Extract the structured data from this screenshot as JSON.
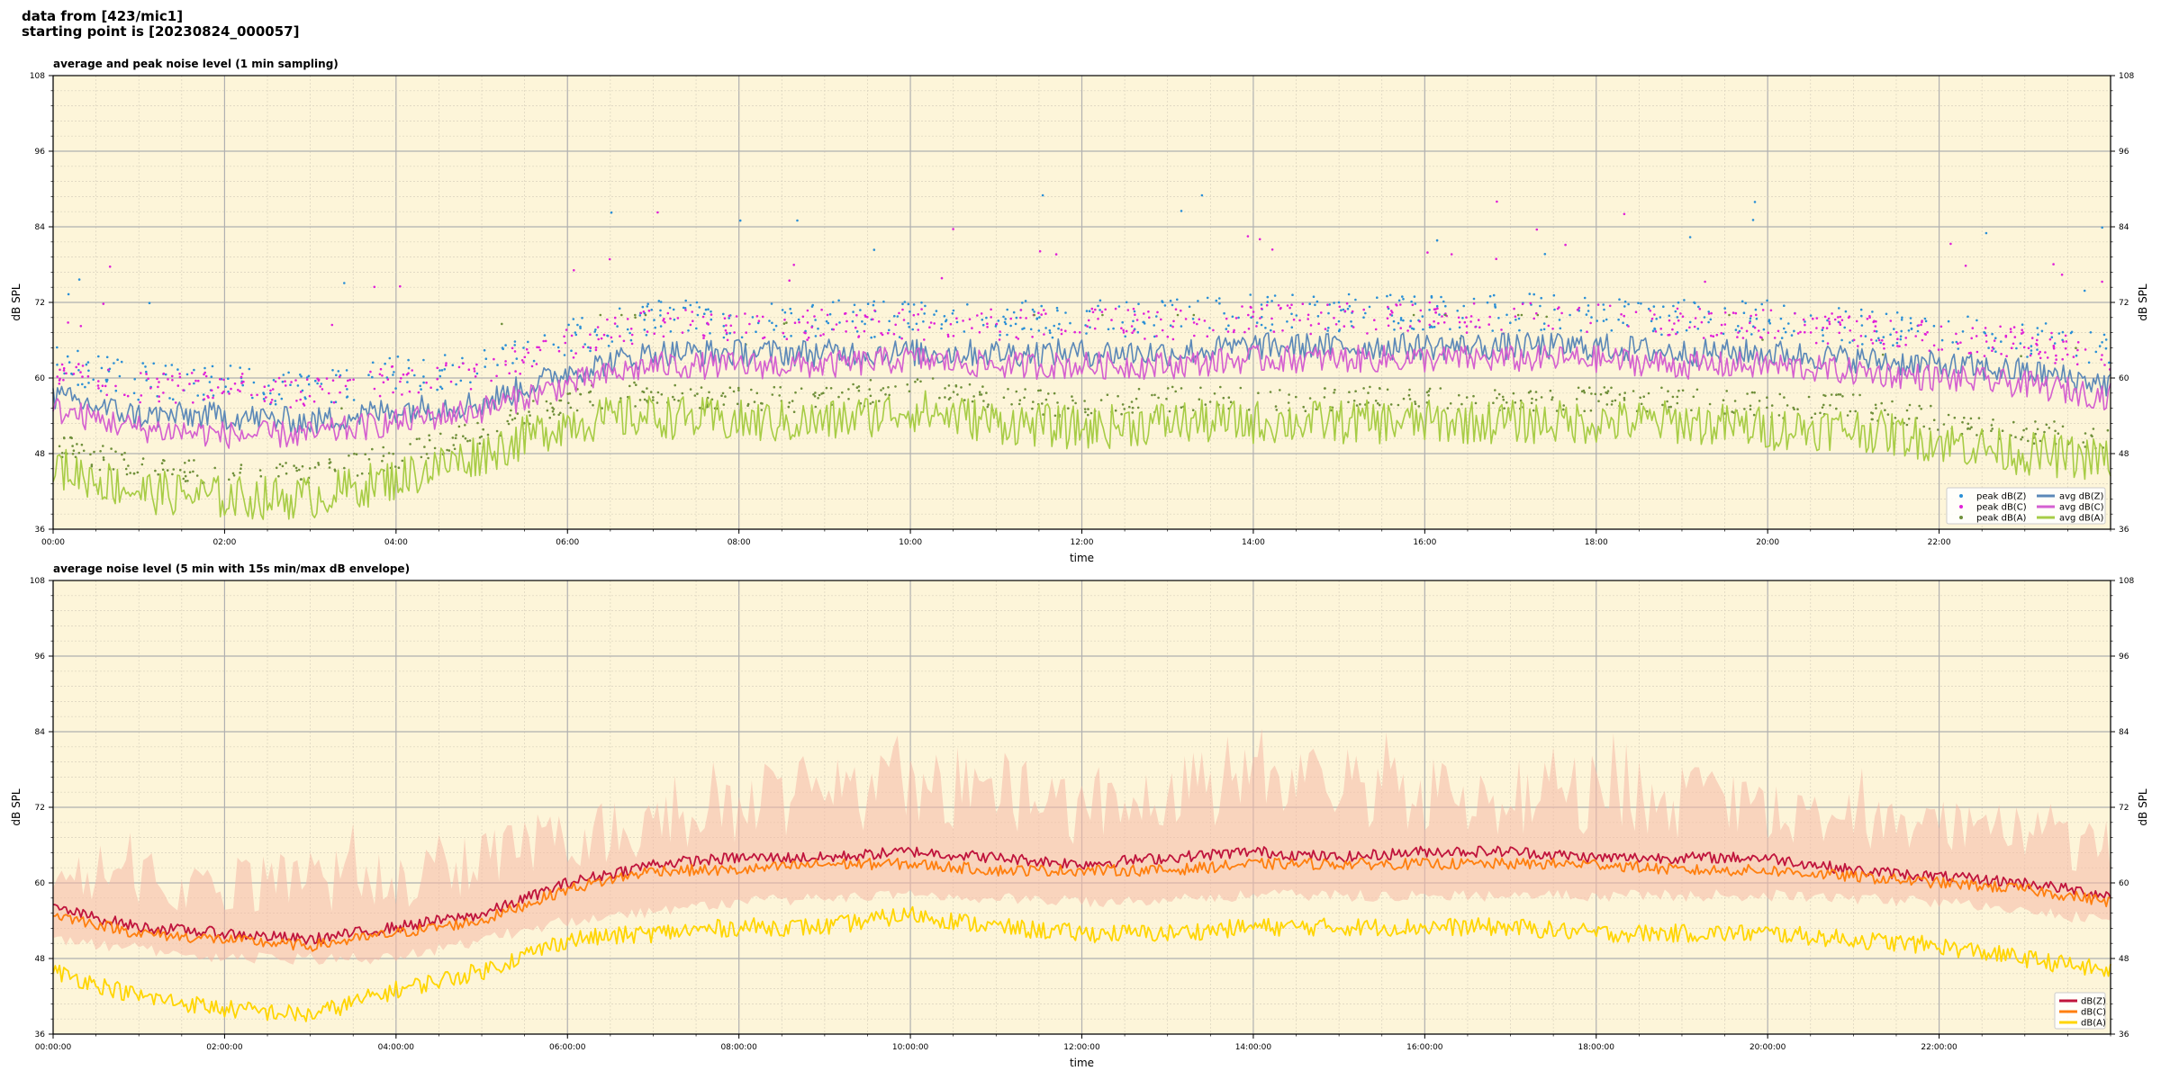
{
  "header": {
    "line1": "data from [423/mic1]",
    "line2": "starting point is [20230824_000057]"
  },
  "colors": {
    "plot_bg": "#fdf5d9",
    "peak_z": "#2a8fd6",
    "peak_c": "#e020d8",
    "peak_a": "#6f8f3a",
    "avg_z": "#5b88b8",
    "avg_c": "#d45fd0",
    "avg_a": "#a7cc45",
    "dbz": "#c0143c",
    "dbc": "#ff7f0e",
    "dba": "#ffd500",
    "envelope": "#f5b8a6"
  },
  "chart_data": [
    {
      "type": "line",
      "title": "average and peak noise level (1 min sampling)",
      "xlabel": "time",
      "ylabel": "dB SPL",
      "ylabel_right": "dB SPL",
      "ylim": [
        36,
        108
      ],
      "xlim_hours": [
        0,
        24
      ],
      "xticks": [
        "00:00",
        "02:00",
        "04:00",
        "06:00",
        "08:00",
        "10:00",
        "12:00",
        "14:00",
        "16:00",
        "18:00",
        "20:00",
        "22:00"
      ],
      "yticks": [
        36,
        48,
        60,
        72,
        84,
        96,
        108
      ],
      "grid": true,
      "legend_position": "lower-right",
      "legend": [
        "peak dB(Z)",
        "peak dB(C)",
        "peak dB(A)",
        "avg dB(Z)",
        "avg dB(C)",
        "avg dB(A)"
      ],
      "series": [
        {
          "name": "avg dB(Z)",
          "kind": "line",
          "x_hours": [
            0,
            1,
            2,
            3,
            4,
            5,
            6,
            7,
            8,
            9,
            10,
            11,
            12,
            13,
            14,
            15,
            16,
            17,
            18,
            19,
            20,
            21,
            22,
            23,
            24
          ],
          "values": [
            57,
            54,
            54,
            53,
            55,
            56,
            61,
            64,
            64,
            64,
            64,
            64,
            64,
            64,
            65,
            65,
            65,
            65,
            65,
            64,
            64,
            63,
            62,
            61,
            59
          ]
        },
        {
          "name": "avg dB(C)",
          "kind": "line",
          "x_hours": [
            0,
            1,
            2,
            3,
            4,
            5,
            6,
            7,
            8,
            9,
            10,
            11,
            12,
            13,
            14,
            15,
            16,
            17,
            18,
            19,
            20,
            21,
            22,
            23,
            24
          ],
          "values": [
            55,
            52,
            51,
            51,
            53,
            55,
            59,
            62,
            62,
            62,
            63,
            62,
            62,
            62,
            63,
            63,
            63,
            63,
            63,
            62,
            62,
            61,
            60,
            59,
            57
          ]
        },
        {
          "name": "avg dB(A)",
          "kind": "line",
          "x_hours": [
            0,
            1,
            2,
            3,
            4,
            5,
            6,
            7,
            8,
            9,
            10,
            11,
            12,
            13,
            14,
            15,
            16,
            17,
            18,
            19,
            20,
            21,
            22,
            23,
            24
          ],
          "values": [
            46,
            42,
            41,
            41,
            44,
            48,
            53,
            54,
            53,
            53,
            55,
            53,
            52,
            53,
            53,
            53,
            53,
            53,
            53,
            53,
            52,
            52,
            50,
            48,
            47
          ]
        },
        {
          "name": "peak dB(Z)",
          "kind": "points",
          "typical_offset_db": 6,
          "max_db": 89
        },
        {
          "name": "peak dB(C)",
          "kind": "points",
          "typical_offset_db": 5,
          "max_db": 88
        },
        {
          "name": "peak dB(A)",
          "kind": "points",
          "typical_offset_db": 4,
          "max_db": 70
        }
      ]
    },
    {
      "type": "line",
      "title": "average noise level (5 min with 15s min/max dB envelope)",
      "xlabel": "time",
      "ylabel": "dB SPL",
      "ylabel_right": "dB SPL",
      "ylim": [
        36,
        108
      ],
      "xlim_hours": [
        0,
        24
      ],
      "xticks": [
        "00:00:00",
        "02:00:00",
        "04:00:00",
        "06:00:00",
        "08:00:00",
        "10:00:00",
        "12:00:00",
        "14:00:00",
        "16:00:00",
        "18:00:00",
        "20:00:00",
        "22:00:00"
      ],
      "yticks": [
        36,
        48,
        60,
        72,
        84,
        96,
        108
      ],
      "grid": true,
      "legend_position": "lower-right",
      "legend": [
        "dB(Z)",
        "dB(C)",
        "dB(A)"
      ],
      "series": [
        {
          "name": "dB(Z)",
          "kind": "line",
          "x_hours": [
            0,
            1,
            2,
            3,
            4,
            5,
            6,
            7,
            8,
            9,
            10,
            11,
            12,
            13,
            14,
            15,
            16,
            17,
            18,
            19,
            20,
            21,
            22,
            23,
            24
          ],
          "values": [
            56,
            53,
            52,
            51,
            53,
            55,
            60,
            63,
            64,
            64,
            65,
            64,
            63,
            64,
            65,
            64,
            65,
            65,
            64,
            64,
            64,
            62,
            61,
            60,
            58
          ]
        },
        {
          "name": "dB(C)",
          "kind": "line",
          "x_hours": [
            0,
            1,
            2,
            3,
            4,
            5,
            6,
            7,
            8,
            9,
            10,
            11,
            12,
            13,
            14,
            15,
            16,
            17,
            18,
            19,
            20,
            21,
            22,
            23,
            24
          ],
          "values": [
            55,
            52,
            51,
            50,
            52,
            54,
            59,
            62,
            62,
            63,
            63,
            62,
            62,
            62,
            63,
            63,
            63,
            63,
            63,
            62,
            62,
            61,
            60,
            59,
            57
          ]
        },
        {
          "name": "dB(A)",
          "kind": "line",
          "x_hours": [
            0,
            1,
            2,
            3,
            4,
            5,
            6,
            7,
            8,
            9,
            10,
            11,
            12,
            13,
            14,
            15,
            16,
            17,
            18,
            19,
            20,
            21,
            22,
            23,
            24
          ],
          "values": [
            46,
            42,
            40,
            39,
            43,
            46,
            51,
            52,
            53,
            53,
            55,
            53,
            52,
            52,
            53,
            53,
            53,
            53,
            52,
            52,
            52,
            51,
            50,
            48,
            46
          ]
        },
        {
          "name": "envelope",
          "kind": "band",
          "x_hours": [
            0,
            2,
            4,
            6,
            8,
            10,
            12,
            14,
            16,
            18,
            20,
            22,
            24
          ],
          "min": [
            50,
            47,
            47,
            53,
            56,
            57,
            56,
            57,
            57,
            57,
            57,
            56,
            53
          ],
          "max": [
            66,
            64,
            66,
            72,
            78,
            84,
            78,
            82,
            80,
            80,
            78,
            74,
            70
          ]
        }
      ]
    }
  ]
}
